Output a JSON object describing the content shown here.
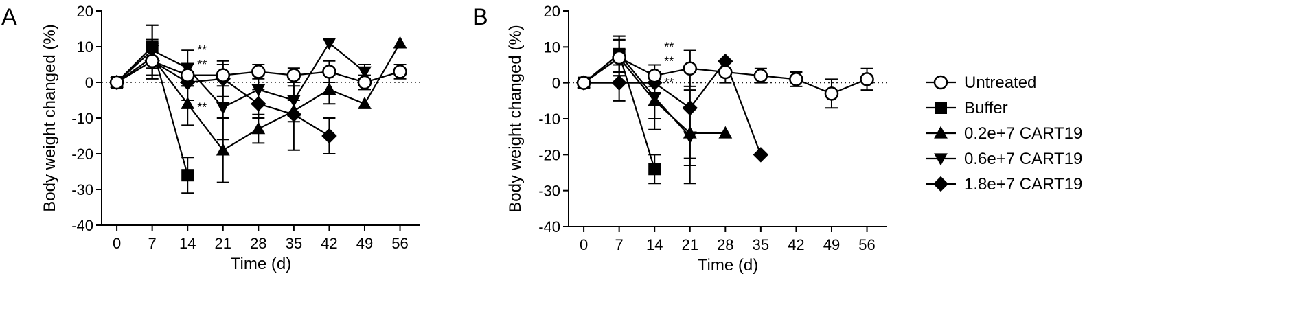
{
  "chart_data": [
    {
      "type": "line",
      "panel_label": "A",
      "xlabel": "Time (d)",
      "ylabel": "Body weight changed (%)",
      "x_ticks": [
        0,
        7,
        14,
        21,
        28,
        35,
        42,
        49,
        56
      ],
      "y_ticks": [
        -40,
        -30,
        -20,
        -10,
        0,
        10,
        20
      ],
      "xlim": [
        -3,
        60
      ],
      "ylim": [
        -40,
        20
      ],
      "reference_line_y": 0,
      "series": [
        {
          "name": "Untreated",
          "marker": "circle-open",
          "points": [
            [
              0,
              0
            ],
            [
              7,
              6
            ],
            [
              14,
              2
            ],
            [
              21,
              2
            ],
            [
              28,
              3
            ],
            [
              35,
              2
            ],
            [
              42,
              3
            ],
            [
              49,
              0
            ],
            [
              56,
              3
            ]
          ],
          "errors": [
            1,
            5,
            3,
            3,
            2,
            2,
            3,
            2,
            2
          ]
        },
        {
          "name": "Buffer",
          "marker": "square",
          "points": [
            [
              0,
              0
            ],
            [
              7,
              10
            ],
            [
              14,
              -26
            ]
          ],
          "errors": [
            1,
            6,
            5
          ]
        },
        {
          "name": "0.2e+7 CART19",
          "marker": "triangle-up",
          "points": [
            [
              0,
              0
            ],
            [
              7,
              7
            ],
            [
              14,
              -6
            ],
            [
              21,
              -19
            ],
            [
              28,
              -13
            ],
            [
              35,
              -8
            ],
            [
              42,
              -2
            ],
            [
              49,
              -6
            ],
            [
              56,
              11
            ]
          ],
          "errors": [
            1,
            5,
            6,
            9,
            4,
            3,
            4,
            0,
            0
          ]
        },
        {
          "name": "0.6e+7 CART19",
          "marker": "triangle-down",
          "points": [
            [
              0,
              0
            ],
            [
              7,
              9
            ],
            [
              14,
              4
            ],
            [
              21,
              -7
            ],
            [
              28,
              -2
            ],
            [
              35,
              -5
            ],
            [
              42,
              11
            ],
            [
              49,
              3
            ]
          ],
          "errors": [
            1,
            7,
            5,
            9,
            4,
            4,
            0,
            2
          ]
        },
        {
          "name": "1.8e+7 CART19",
          "marker": "diamond",
          "points": [
            [
              0,
              0
            ],
            [
              7,
              6
            ],
            [
              14,
              0
            ],
            [
              21,
              1
            ],
            [
              28,
              -6
            ],
            [
              35,
              -9
            ],
            [
              42,
              -15
            ]
          ],
          "errors": [
            1,
            5,
            5,
            5,
            4,
            10,
            5
          ]
        }
      ],
      "annotations": [
        {
          "text": "**",
          "x": 14,
          "y": 9
        },
        {
          "text": "**",
          "x": 14,
          "y": 5
        },
        {
          "text": "**",
          "x": 14,
          "y": -7
        }
      ]
    },
    {
      "type": "line",
      "panel_label": "B",
      "xlabel": "Time (d)",
      "ylabel": "Body weight changed (%)",
      "x_ticks": [
        0,
        7,
        14,
        21,
        28,
        35,
        42,
        49,
        56
      ],
      "y_ticks": [
        -40,
        -30,
        -20,
        -10,
        0,
        10,
        20
      ],
      "xlim": [
        -3,
        60
      ],
      "ylim": [
        -40,
        20
      ],
      "reference_line_y": 0,
      "series": [
        {
          "name": "Untreated",
          "marker": "circle-open",
          "points": [
            [
              0,
              0
            ],
            [
              7,
              7
            ],
            [
              14,
              2
            ],
            [
              21,
              4
            ],
            [
              28,
              3
            ],
            [
              35,
              2
            ],
            [
              42,
              1
            ],
            [
              49,
              -3
            ],
            [
              56,
              1
            ]
          ],
          "errors": [
            1,
            5,
            3,
            5,
            3,
            2,
            2,
            4,
            3
          ]
        },
        {
          "name": "Buffer",
          "marker": "square",
          "points": [
            [
              0,
              0
            ],
            [
              7,
              8
            ],
            [
              14,
              -24
            ]
          ],
          "errors": [
            1,
            5,
            4
          ]
        },
        {
          "name": "0.2e+7 CART19",
          "marker": "triangle-up",
          "points": [
            [
              0,
              0
            ],
            [
              7,
              7
            ],
            [
              14,
              -5
            ],
            [
              21,
              -14
            ],
            [
              28,
              -14
            ]
          ],
          "errors": [
            1,
            5,
            8,
            7,
            0
          ]
        },
        {
          "name": "0.6e+7 CART19",
          "marker": "triangle-down",
          "points": [
            [
              0,
              0
            ],
            [
              7,
              8
            ],
            [
              14,
              -4
            ],
            [
              21,
              -15
            ]
          ],
          "errors": [
            1,
            5,
            6,
            13
          ]
        },
        {
          "name": "1.8e+7 CART19",
          "marker": "diamond",
          "points": [
            [
              0,
              0
            ],
            [
              7,
              0
            ],
            [
              14,
              0
            ],
            [
              21,
              -7
            ],
            [
              28,
              6
            ],
            [
              35,
              -20
            ]
          ],
          "errors": [
            1,
            5,
            3,
            16,
            0,
            0
          ]
        }
      ],
      "annotations": [
        {
          "text": "**",
          "x": 14,
          "y": 10
        },
        {
          "text": "**",
          "x": 14,
          "y": 6
        },
        {
          "text": "**",
          "x": 14,
          "y": 0
        }
      ]
    }
  ],
  "legend": {
    "placement": "right",
    "entries": [
      {
        "label": "Untreated",
        "marker": "circle-open"
      },
      {
        "label": "Buffer",
        "marker": "square"
      },
      {
        "label": "0.2e+7 CART19",
        "marker": "triangle-up"
      },
      {
        "label": "0.6e+7 CART19",
        "marker": "triangle-down"
      },
      {
        "label": "1.8e+7 CART19",
        "marker": "diamond"
      }
    ]
  },
  "colors": {
    "ink": "#000000",
    "background": "#ffffff"
  }
}
